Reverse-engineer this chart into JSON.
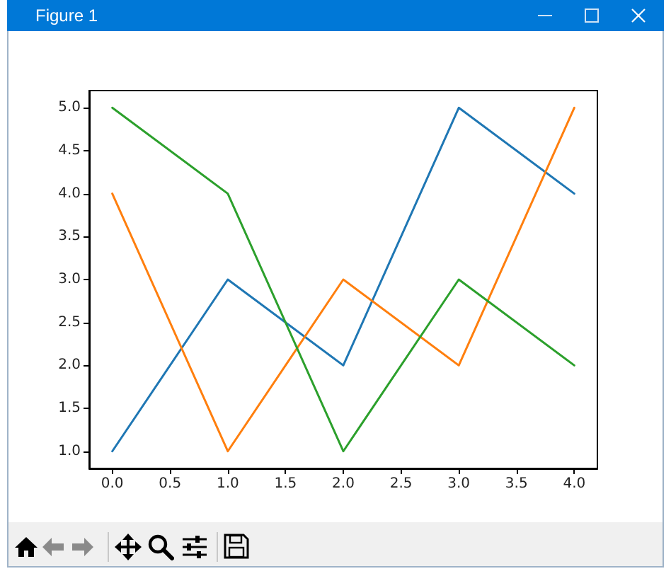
{
  "chart_data": {
    "type": "line",
    "title": "Figure 1",
    "x": [
      0,
      1,
      2,
      3,
      4
    ],
    "series": [
      {
        "color": "#1f77b4",
        "values": [
          1,
          3,
          2,
          5,
          4
        ]
      },
      {
        "color": "#ff7f0e",
        "values": [
          4,
          1,
          3,
          2,
          5
        ]
      },
      {
        "color": "#2ca02c",
        "values": [
          5,
          4,
          1,
          3,
          2
        ]
      }
    ],
    "xlim": [
      -0.2,
      4.2
    ],
    "ylim": [
      0.8,
      5.2
    ],
    "xticks": [
      {
        "value": 0,
        "label": "0.0"
      },
      {
        "value": 0.5,
        "label": "0.5"
      },
      {
        "value": 1,
        "label": "1.0"
      },
      {
        "value": 1.5,
        "label": "1.5"
      },
      {
        "value": 2,
        "label": "2.0"
      },
      {
        "value": 2.5,
        "label": "2.5"
      },
      {
        "value": 3,
        "label": "3.0"
      },
      {
        "value": 3.5,
        "label": "3.5"
      },
      {
        "value": 4,
        "label": "4.0"
      }
    ],
    "yticks": [
      {
        "value": 1,
        "label": "1.0"
      },
      1.5,
      {
        "value": 2,
        "label": "2.0"
      },
      2.5,
      {
        "value": 3,
        "label": "3.0"
      },
      3.5,
      {
        "value": 4,
        "label": "4.0"
      },
      4.5,
      {
        "value": 5,
        "label": "5.0"
      }
    ],
    "marker": "none",
    "line_style": "solid"
  }
}
